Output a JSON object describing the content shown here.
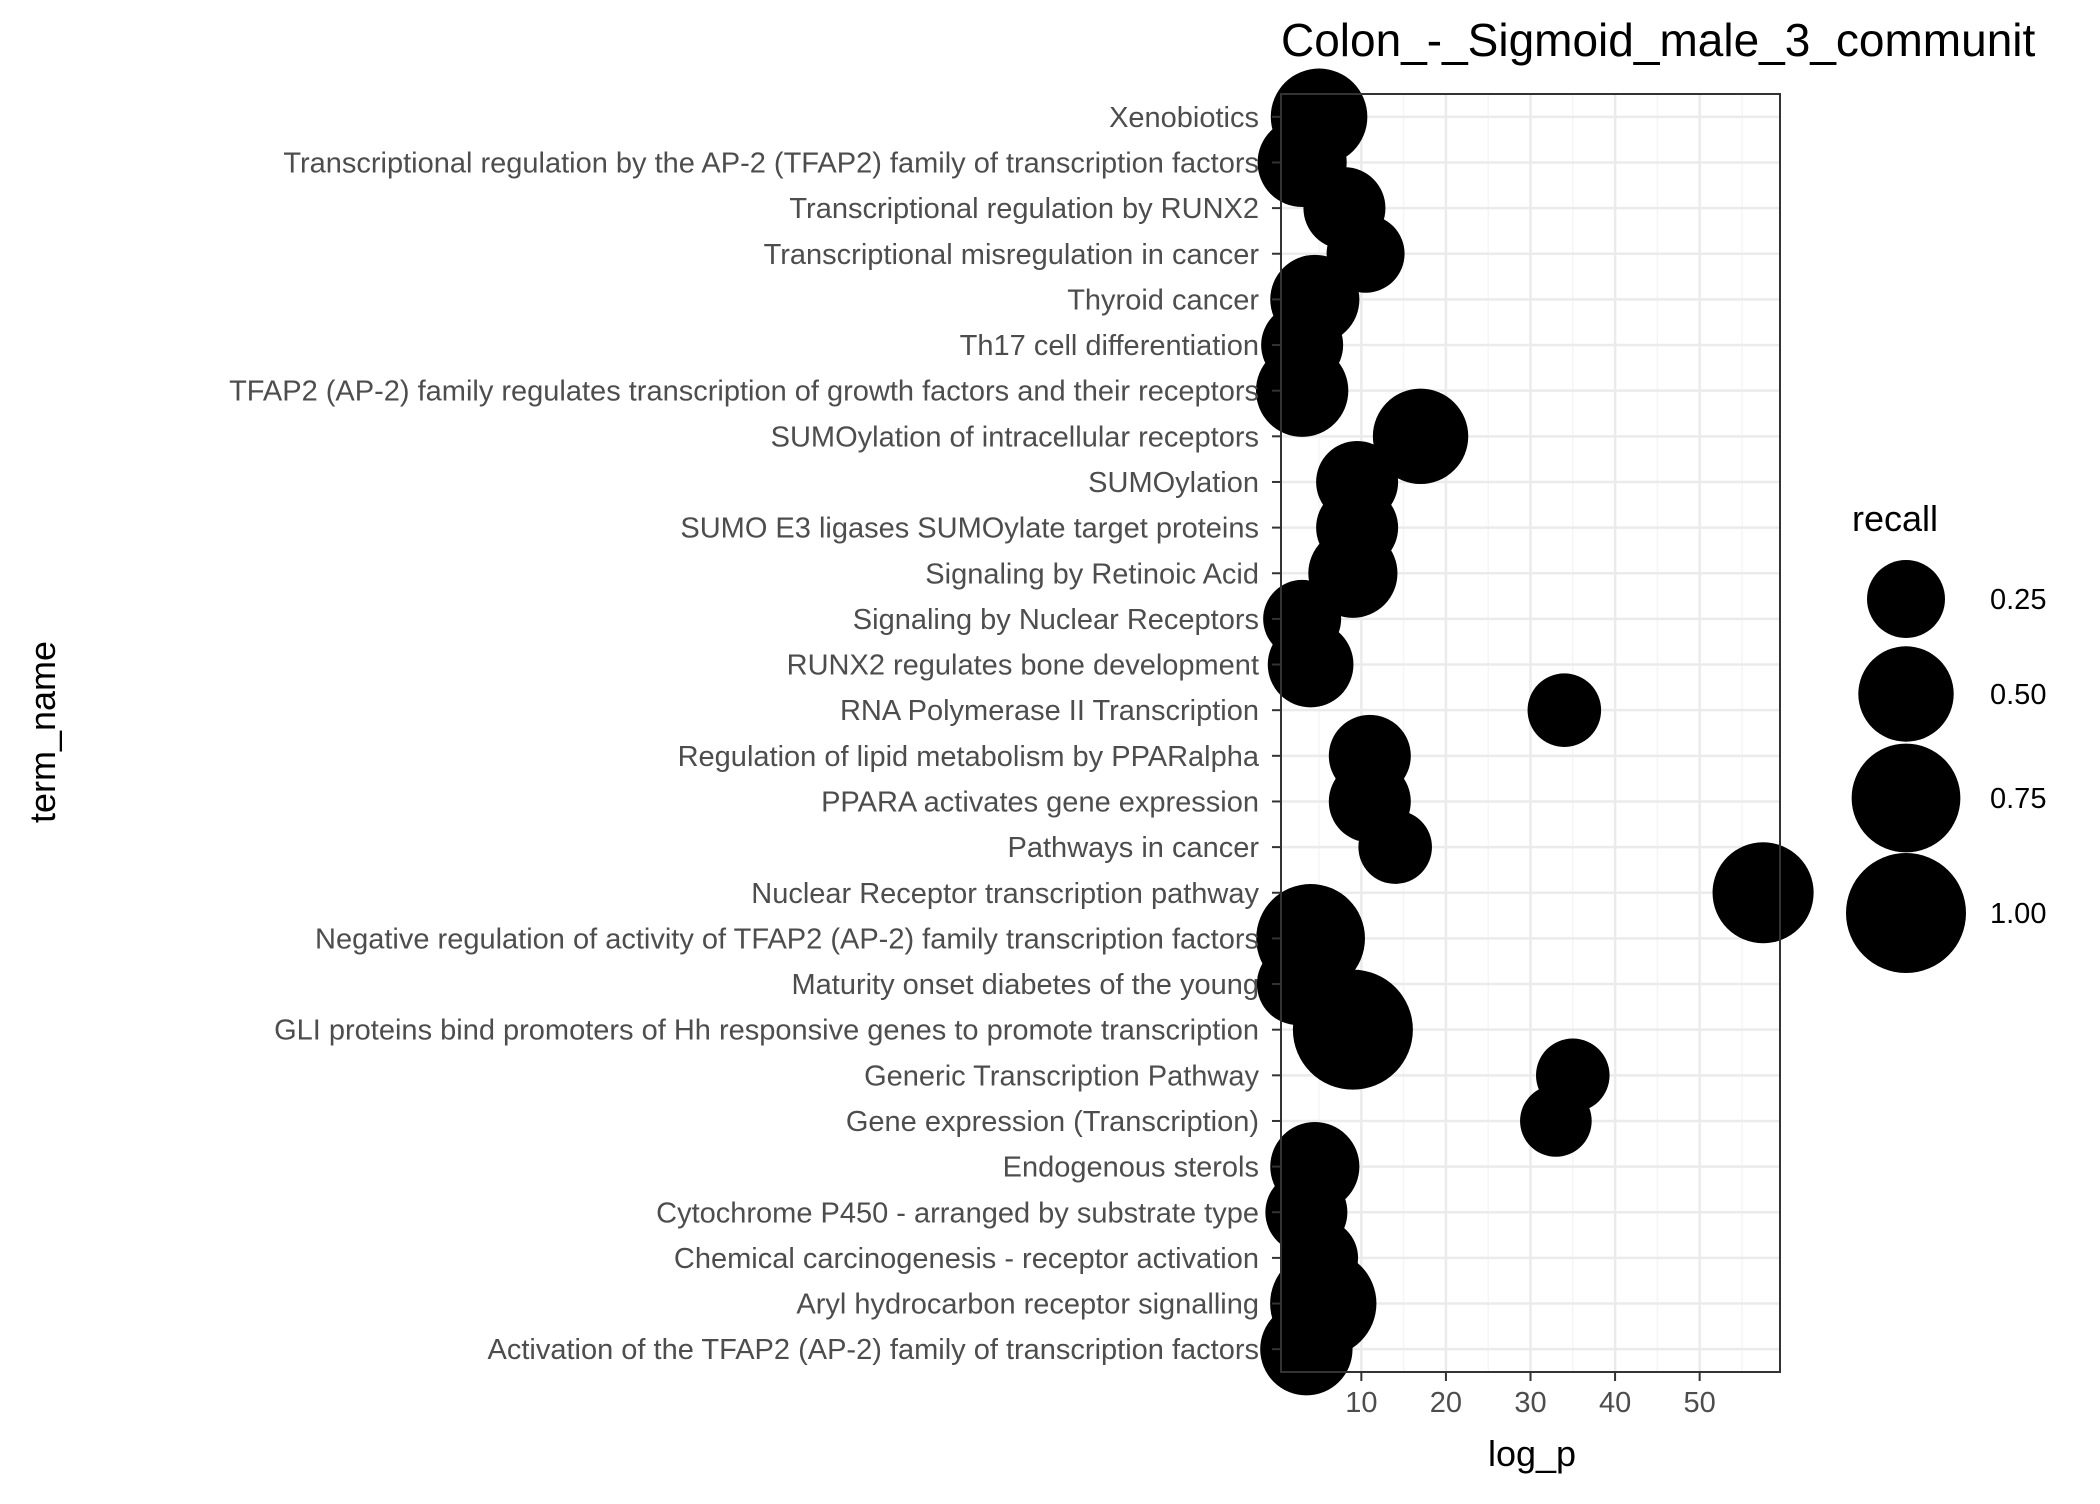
{
  "chart_data": {
    "type": "scatter",
    "title": "Colon_-_Sigmoid_male_3_communit",
    "xlabel": "log_p",
    "ylabel": "term_name",
    "xlim": [
      0.5,
      59.5
    ],
    "xticks": [
      10,
      20,
      30,
      40,
      50
    ],
    "grid": true,
    "legend": {
      "title": "recall",
      "placement": "right",
      "entries": [
        {
          "label": "0.25",
          "value": 0.25
        },
        {
          "label": "0.50",
          "value": 0.5
        },
        {
          "label": "0.75",
          "value": 0.75
        },
        {
          "label": "1.00",
          "value": 1.0
        }
      ]
    },
    "categories": [
      "Xenobiotics",
      "Transcriptional regulation by the AP-2 (TFAP2) family of transcription factors",
      "Transcriptional regulation by RUNX2",
      "Transcriptional misregulation in cancer",
      "Thyroid cancer",
      "Th17 cell differentiation",
      "TFAP2 (AP-2) family regulates transcription of growth factors and their receptors",
      "SUMOylation of intracellular receptors",
      "SUMOylation",
      "SUMO E3 ligases SUMOylate target proteins",
      "Signaling by Retinoic Acid",
      "Signaling by Nuclear Receptors",
      "RUNX2 regulates bone development",
      "RNA Polymerase II Transcription",
      "Regulation of lipid metabolism by PPARalpha",
      "PPARA activates gene expression",
      "Pathways in cancer",
      "Nuclear Receptor transcription pathway",
      "Negative regulation of activity of TFAP2 (AP-2) family transcription factors",
      "Maturity onset diabetes of the young",
      "GLI proteins bind promoters of Hh responsive genes to promote transcription",
      "Generic Transcription Pathway",
      "Gene expression (Transcription)",
      "Endogenous sterols",
      "Cytochrome P450 - arranged by substrate type",
      "Chemical carcinogenesis - receptor activation",
      "Aryl hydrocarbon receptor signalling",
      "Activation of the TFAP2 (AP-2) family of transcription factors"
    ],
    "points": [
      {
        "term": "Xenobiotics",
        "log_p": 5.0,
        "recall": 0.52
      },
      {
        "term": "Transcriptional regulation by the AP-2 (TFAP2) family of transcription factors",
        "log_p": 3.0,
        "recall": 0.4
      },
      {
        "term": "Transcriptional regulation by RUNX2",
        "log_p": 8.0,
        "recall": 0.3
      },
      {
        "term": "Transcriptional misregulation in cancer",
        "log_p": 10.5,
        "recall": 0.25
      },
      {
        "term": "Thyroid cancer",
        "log_p": 4.5,
        "recall": 0.4
      },
      {
        "term": "Th17 cell differentiation",
        "log_p": 3.0,
        "recall": 0.3
      },
      {
        "term": "TFAP2 (AP-2) family regulates transcription of growth factors and their receptors",
        "log_p": 3.0,
        "recall": 0.45
      },
      {
        "term": "SUMOylation of intracellular receptors",
        "log_p": 17.0,
        "recall": 0.5
      },
      {
        "term": "SUMOylation",
        "log_p": 9.5,
        "recall": 0.3
      },
      {
        "term": "SUMO E3 ligases SUMOylate target proteins",
        "log_p": 9.5,
        "recall": 0.3
      },
      {
        "term": "Signaling by Retinoic Acid",
        "log_p": 9.0,
        "recall": 0.4
      },
      {
        "term": "Signaling by Nuclear Receptors",
        "log_p": 3.0,
        "recall": 0.25
      },
      {
        "term": "RUNX2 regulates bone development",
        "log_p": 4.0,
        "recall": 0.35
      },
      {
        "term": "RNA Polymerase II Transcription",
        "log_p": 34.0,
        "recall": 0.2
      },
      {
        "term": "Regulation of lipid metabolism by PPARalpha",
        "log_p": 11.0,
        "recall": 0.3
      },
      {
        "term": "PPARA activates gene expression",
        "log_p": 11.0,
        "recall": 0.3
      },
      {
        "term": "Pathways in cancer",
        "log_p": 14.0,
        "recall": 0.2
      },
      {
        "term": "Nuclear Receptor transcription pathway",
        "log_p": 57.5,
        "recall": 0.6
      },
      {
        "term": "Negative regulation of activity of TFAP2 (AP-2) family transcription factors",
        "log_p": 4.0,
        "recall": 0.75
      },
      {
        "term": "Maturity onset diabetes of the young",
        "log_p": 2.5,
        "recall": 0.3
      },
      {
        "term": "GLI proteins bind promoters of Hh responsive genes to promote transcription",
        "log_p": 9.0,
        "recall": 1.0
      },
      {
        "term": "Generic Transcription Pathway",
        "log_p": 35.0,
        "recall": 0.2
      },
      {
        "term": "Gene expression (Transcription)",
        "log_p": 33.0,
        "recall": 0.18
      },
      {
        "term": "Endogenous sterols",
        "log_p": 4.5,
        "recall": 0.4
      },
      {
        "term": "Cytochrome P450 - arranged by substrate type",
        "log_p": 3.5,
        "recall": 0.3
      },
      {
        "term": "Chemical carcinogenesis - receptor activation",
        "log_p": 5.0,
        "recall": 0.25
      },
      {
        "term": "Aryl hydrocarbon receptor signalling",
        "log_p": 5.5,
        "recall": 0.7
      },
      {
        "term": "Activation of the TFAP2 (AP-2) family of transcription factors",
        "log_p": 3.5,
        "recall": 0.45
      }
    ]
  },
  "colors": {
    "point": "#000000",
    "grid_major": "#ebebeb",
    "grid_minor": "#f5f5f5",
    "panel_border": "#333333",
    "tick_text": "#4d4d4d",
    "title_text": "#000000"
  }
}
